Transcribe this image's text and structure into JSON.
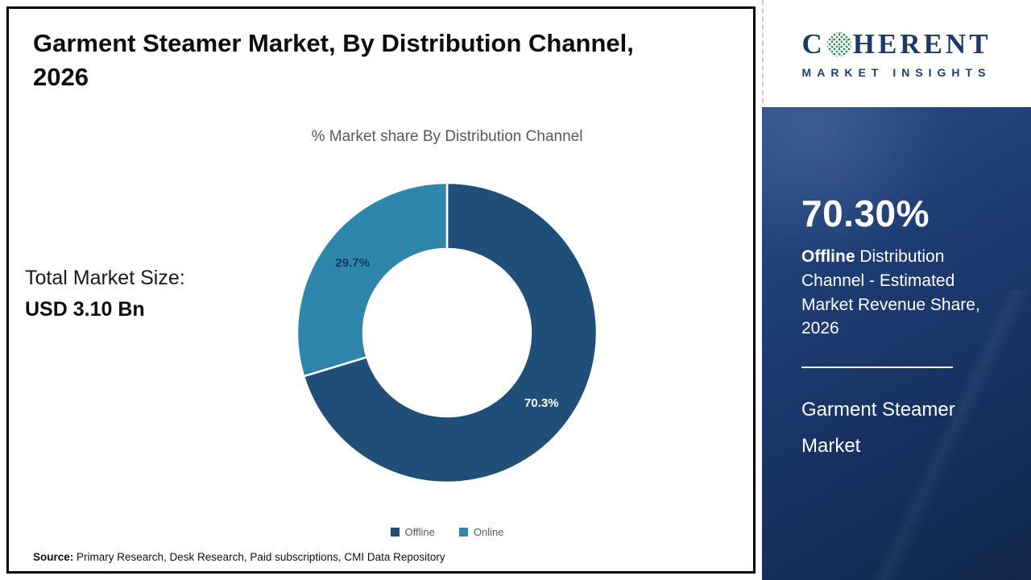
{
  "title": "Garment Steamer Market, By Distribution Channel, 2026",
  "chart_data": {
    "type": "pie",
    "donut": true,
    "title": "% Market share By Distribution Channel",
    "categories": [
      "Offline",
      "Online"
    ],
    "values": [
      70.3,
      29.7
    ],
    "data_labels": [
      "70.3%",
      "29.7%"
    ],
    "colors": [
      "#1f4e79",
      "#2e86ab"
    ],
    "label_colors": [
      "#ffffff",
      "#17375e"
    ],
    "legend_position": "bottom",
    "start_angle_deg": 0,
    "direction": "clockwise"
  },
  "market": {
    "size_label": "Total Market Size:",
    "size_value": "USD 3.10 Bn"
  },
  "source": {
    "label": "Source:",
    "text": " Primary Research, Desk Research, Paid subscriptions, CMI Data Repository"
  },
  "logo": {
    "pre": "C",
    "post": "HERENT",
    "subtitle": "MARKET INSIGHTS"
  },
  "sidebar": {
    "stat_value": "70.30%",
    "stat_bold": "Offline",
    "stat_text": " Distribution Channel - Estimated Market Revenue Share, 2026",
    "market_name": "Garment Steamer Market"
  }
}
